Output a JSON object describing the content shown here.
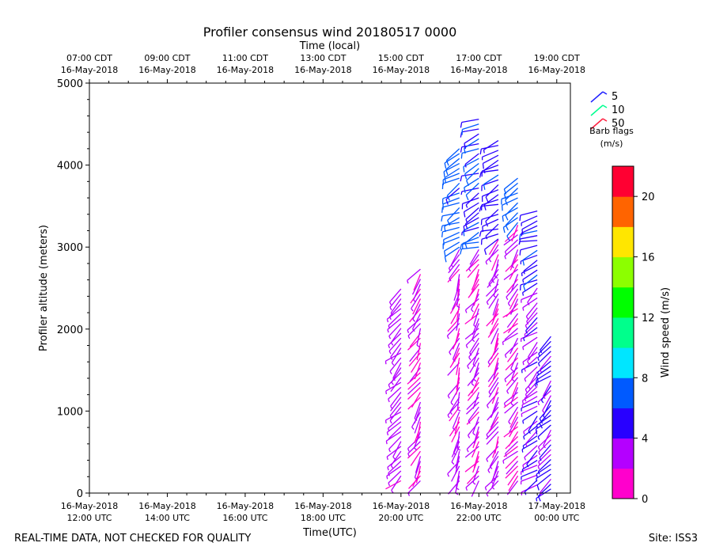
{
  "chart_data": {
    "type": "scatter",
    "title": "Profiler consensus wind 20180517 0000",
    "top_axis_label": "Time (local)",
    "xlabel": "Time(UTC)",
    "ylabel": "Profiler altitude (meters)",
    "x_unit": "hours since 16-May-2018 12:00 UTC",
    "xlim": [
      0,
      12.35
    ],
    "ylim": [
      0,
      5000
    ],
    "y_ticks": [
      0,
      1000,
      2000,
      3000,
      4000,
      5000
    ],
    "bottom_ticks": [
      {
        "x": 0,
        "line1": "16-May-2018",
        "line2": "12:00 UTC"
      },
      {
        "x": 2,
        "line1": "16-May-2018",
        "line2": "14:00 UTC"
      },
      {
        "x": 4,
        "line1": "16-May-2018",
        "line2": "16:00 UTC"
      },
      {
        "x": 6,
        "line1": "16-May-2018",
        "line2": "18:00 UTC"
      },
      {
        "x": 8,
        "line1": "16-May-2018",
        "line2": "20:00 UTC"
      },
      {
        "x": 10,
        "line1": "16-May-2018",
        "line2": "22:00 UTC"
      },
      {
        "x": 12,
        "line1": "17-May-2018",
        "line2": "00:00 UTC"
      }
    ],
    "top_ticks": [
      {
        "x": 0,
        "line1": "07:00 CDT",
        "line2": "16-May-2018"
      },
      {
        "x": 2,
        "line1": "09:00 CDT",
        "line2": "16-May-2018"
      },
      {
        "x": 4,
        "line1": "11:00 CDT",
        "line2": "16-May-2018"
      },
      {
        "x": 6,
        "line1": "13:00 CDT",
        "line2": "16-May-2018"
      },
      {
        "x": 8,
        "line1": "15:00 CDT",
        "line2": "16-May-2018"
      },
      {
        "x": 10,
        "line1": "17:00 CDT",
        "line2": "16-May-2018"
      },
      {
        "x": 12,
        "line1": "19:00 CDT",
        "line2": "16-May-2018"
      }
    ],
    "barb_legend": {
      "title_line1": "Barb flags",
      "title_line2": "(m/s)",
      "entries": [
        {
          "label": "5",
          "color": "#1f1fff"
        },
        {
          "label": "10",
          "color": "#00ff90"
        },
        {
          "label": "50",
          "color": "#ff1f3f"
        }
      ]
    },
    "colorbar": {
      "label": "Wind speed (m/s)",
      "min": 0,
      "max": 22,
      "ticks": [
        0,
        4,
        8,
        12,
        16,
        20
      ],
      "colors": [
        "#ff00cc",
        "#b400ff",
        "#2800ff",
        "#005aff",
        "#00e6ff",
        "#00ff8c",
        "#00ff00",
        "#8cff00",
        "#ffe600",
        "#ff6400",
        "#ff0032"
      ]
    },
    "profiles": [
      {
        "x": 8.0,
        "z_min": 150,
        "z_max": 2500,
        "step": 60,
        "speed": 3.0,
        "dir": 225
      },
      {
        "x": 8.5,
        "z_min": 150,
        "z_max": 2750,
        "step": 60,
        "speed": 2.0,
        "dir": 210
      },
      {
        "x": 9.5,
        "z_min": 150,
        "z_max": 3000,
        "step": 60,
        "speed": 2.2,
        "dir": 205
      },
      {
        "x": 9.5,
        "z_min": 3000,
        "z_max": 4250,
        "step": 60,
        "speed": 6.5,
        "dir": 240
      },
      {
        "x": 10.0,
        "z_min": 150,
        "z_max": 3000,
        "step": 60,
        "speed": 2.0,
        "dir": 215
      },
      {
        "x": 10.0,
        "z_min": 3000,
        "z_max": 4600,
        "step": 60,
        "speed": 5.8,
        "dir": 245
      },
      {
        "x": 10.5,
        "z_min": 150,
        "z_max": 3100,
        "step": 60,
        "speed": 2.2,
        "dir": 210
      },
      {
        "x": 10.5,
        "z_min": 3100,
        "z_max": 4300,
        "step": 60,
        "speed": 5.2,
        "dir": 245
      },
      {
        "x": 11.0,
        "z_min": 150,
        "z_max": 3300,
        "step": 60,
        "speed": 2.0,
        "dir": 220
      },
      {
        "x": 11.0,
        "z_min": 3300,
        "z_max": 3850,
        "step": 60,
        "speed": 7.5,
        "dir": 235
      },
      {
        "x": 11.5,
        "z_min": 100,
        "z_max": 2600,
        "step": 60,
        "speed": 3.6,
        "dir": 230
      },
      {
        "x": 11.5,
        "z_min": 2600,
        "z_max": 3450,
        "step": 60,
        "speed": 5.2,
        "dir": 250
      },
      {
        "x": 11.85,
        "z_min": 50,
        "z_max": 1950,
        "step": 60,
        "speed": 4.4,
        "dir": 225
      }
    ]
  },
  "footer": {
    "left": "REAL-TIME DATA, NOT CHECKED FOR QUALITY",
    "right": "Site: ISS3"
  }
}
